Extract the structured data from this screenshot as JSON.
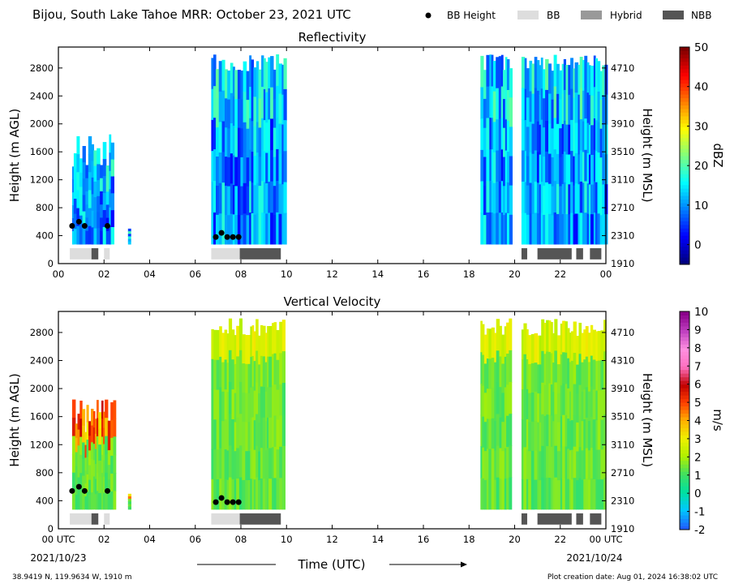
{
  "header": {
    "title": "Bijou, South Lake Tahoe MRR:  October 23, 2021 UTC",
    "legend": [
      {
        "label": "BB Height",
        "marker": "dot",
        "color": "#000000"
      },
      {
        "label": "BB",
        "marker": "patch",
        "color": "#dddddd"
      },
      {
        "label": "Hybrid",
        "marker": "patch",
        "color": "#999999"
      },
      {
        "label": "NBB",
        "marker": "patch",
        "color": "#555555"
      }
    ]
  },
  "footer": {
    "coords": "38.9419 N, 119.9634 W, 1910 m",
    "creation": "Plot creation date: Aug 01, 2024 16:38:02 UTC",
    "xlabel": "Time (UTC)",
    "date_start": "2021/10/23",
    "date_end": "2021/10/24"
  },
  "chart_data": [
    {
      "type": "heatmap",
      "title": "Reflectivity",
      "ylabel": "Height (m AGL)",
      "ylabel_right": "Height (m MSL)",
      "x_ticks": [
        "00",
        "02",
        "04",
        "06",
        "08",
        "10",
        "12",
        "14",
        "16",
        "18",
        "20",
        "22",
        "00"
      ],
      "y_ticks": [
        0,
        400,
        800,
        1200,
        1600,
        2000,
        2400,
        2800
      ],
      "y_ticks_right": [
        "1910",
        "2310",
        "2710",
        "3110",
        "3510",
        "3910",
        "4310",
        "4710"
      ],
      "xlim": [
        0,
        24
      ],
      "ylim": [
        0,
        3100
      ],
      "colorbar": {
        "label": "dBZ",
        "min": -5,
        "max": 50,
        "ticks": [
          0,
          10,
          20,
          30,
          40,
          50
        ],
        "tick_labels": [
          "0",
          "10",
          "20",
          "30",
          "40",
          "50"
        ],
        "colors": [
          "#00007f",
          "#0000ff",
          "#007fff",
          "#00ffff",
          "#7fff7f",
          "#ffff00",
          "#ff7f00",
          "#ff0000",
          "#7f0000"
        ]
      },
      "precip_segments": [
        {
          "start": 0.6,
          "end": 2.4,
          "top": 1850
        },
        {
          "start": 3.05,
          "end": 3.12,
          "top": 500
        },
        {
          "start": 6.7,
          "end": 9.9,
          "top": 3000
        },
        {
          "start": 18.5,
          "end": 19.8,
          "top": 3000
        },
        {
          "start": 20.3,
          "end": 24.0,
          "top": 3000
        }
      ],
      "bb_heights": [
        {
          "time": 0.6,
          "height": 540
        },
        {
          "time": 0.9,
          "height": 600
        },
        {
          "time": 1.15,
          "height": 540
        },
        {
          "time": 2.15,
          "height": 540
        },
        {
          "time": 6.9,
          "height": 380
        },
        {
          "time": 7.15,
          "height": 440
        },
        {
          "time": 7.4,
          "height": 380
        },
        {
          "time": 7.65,
          "height": 380
        },
        {
          "time": 7.9,
          "height": 380
        }
      ],
      "bb_types": [
        {
          "start": 0.5,
          "end": 1.45,
          "type": "BB"
        },
        {
          "start": 1.45,
          "end": 1.75,
          "type": "NBB"
        },
        {
          "start": 2.0,
          "end": 2.25,
          "type": "BB"
        },
        {
          "start": 6.7,
          "end": 7.95,
          "type": "BB"
        },
        {
          "start": 7.95,
          "end": 9.75,
          "type": "NBB"
        },
        {
          "start": 20.3,
          "end": 20.55,
          "type": "NBB"
        },
        {
          "start": 21.0,
          "end": 22.5,
          "type": "NBB"
        },
        {
          "start": 22.7,
          "end": 23.0,
          "type": "NBB"
        },
        {
          "start": 23.3,
          "end": 23.8,
          "type": "NBB"
        }
      ]
    },
    {
      "type": "heatmap",
      "title": "Vertical Velocity",
      "ylabel": "Height (m AGL)",
      "ylabel_right": "Height (m MSL)",
      "x_ticks": [
        "00 UTC",
        "02",
        "04",
        "06",
        "08",
        "10",
        "12",
        "14",
        "16",
        "18",
        "20",
        "22",
        "00 UTC"
      ],
      "y_ticks": [
        0,
        400,
        800,
        1200,
        1600,
        2000,
        2400,
        2800
      ],
      "y_ticks_right": [
        "1910",
        "2310",
        "2710",
        "3110",
        "3510",
        "3910",
        "4310",
        "4710"
      ],
      "xlim": [
        0,
        24
      ],
      "ylim": [
        0,
        3100
      ],
      "colorbar": {
        "label": "m/s",
        "min": -2,
        "max": 10,
        "ticks": [
          -2,
          -1,
          0,
          1,
          2,
          3,
          4,
          5,
          6,
          7,
          8,
          9,
          10
        ],
        "tick_labels": [
          "-2",
          "-1",
          "0",
          "1",
          "2",
          "3",
          "4",
          "5",
          "6",
          "7",
          "8",
          "9",
          "10"
        ],
        "colors": [
          "#1f5fff",
          "#00c8ff",
          "#00e0a0",
          "#40e060",
          "#b0f000",
          "#f0f000",
          "#ffb000",
          "#ff4000",
          "#c00000",
          "#ff70c0",
          "#ff90e0",
          "#c040c0",
          "#8b008b"
        ]
      },
      "precip_segments": [
        {
          "start": 0.6,
          "end": 2.4,
          "top": 1850
        },
        {
          "start": 3.05,
          "end": 3.12,
          "top": 500
        },
        {
          "start": 6.7,
          "end": 9.9,
          "top": 3000
        },
        {
          "start": 18.5,
          "end": 19.8,
          "top": 3000
        },
        {
          "start": 20.3,
          "end": 24.0,
          "top": 3000
        }
      ],
      "bb_heights": [
        {
          "time": 0.6,
          "height": 540
        },
        {
          "time": 0.9,
          "height": 600
        },
        {
          "time": 1.15,
          "height": 540
        },
        {
          "time": 2.15,
          "height": 540
        },
        {
          "time": 6.9,
          "height": 380
        },
        {
          "time": 7.15,
          "height": 440
        },
        {
          "time": 7.4,
          "height": 380
        },
        {
          "time": 7.65,
          "height": 380
        },
        {
          "time": 7.9,
          "height": 380
        }
      ],
      "bb_types": [
        {
          "start": 0.5,
          "end": 1.45,
          "type": "BB"
        },
        {
          "start": 1.45,
          "end": 1.75,
          "type": "NBB"
        },
        {
          "start": 2.0,
          "end": 2.25,
          "type": "BB"
        },
        {
          "start": 6.7,
          "end": 7.95,
          "type": "BB"
        },
        {
          "start": 7.95,
          "end": 9.75,
          "type": "NBB"
        },
        {
          "start": 20.3,
          "end": 20.55,
          "type": "NBB"
        },
        {
          "start": 21.0,
          "end": 22.5,
          "type": "NBB"
        },
        {
          "start": 22.7,
          "end": 23.0,
          "type": "NBB"
        },
        {
          "start": 23.3,
          "end": 23.8,
          "type": "NBB"
        }
      ]
    }
  ]
}
